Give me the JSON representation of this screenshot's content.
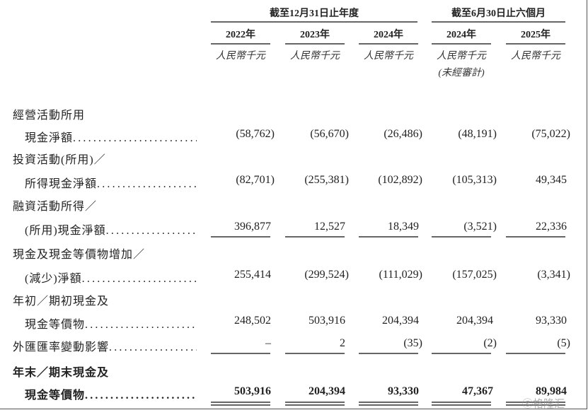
{
  "header": {
    "group_annual": "截至12月31日止年度",
    "group_interim": "截至6月30日止六個月",
    "columns": [
      {
        "year": "2022年",
        "unit": "人民幣千元",
        "note": ""
      },
      {
        "year": "2023年",
        "unit": "人民幣千元",
        "note": ""
      },
      {
        "year": "2024年",
        "unit": "人民幣千元",
        "note": ""
      },
      {
        "year": "2024年",
        "unit": "人民幣千元",
        "note": "(未經審計)"
      },
      {
        "year": "2025年",
        "unit": "人民幣千元",
        "note": ""
      }
    ]
  },
  "rows": [
    {
      "lines": [
        "經營活動所用",
        "現金淨額"
      ],
      "values": [
        "(58,762)",
        "(56,670)",
        "(26,486)",
        "(48,191)",
        "(75,022)"
      ],
      "bold": false,
      "rule": "none"
    },
    {
      "lines": [
        "投資活動(所用)／",
        "所得現金淨額"
      ],
      "values": [
        "(82,701)",
        "(255,381)",
        "(102,892)",
        "(105,313)",
        "49,345"
      ],
      "bold": false,
      "rule": "none"
    },
    {
      "lines": [
        "融資活動所得／",
        "(所用)現金淨額"
      ],
      "values": [
        "396,877",
        "12,527",
        "18,349",
        "(3,521)",
        "22,336"
      ],
      "bold": false,
      "rule": "single"
    },
    {
      "lines": [
        "現金及現金等價物增加／",
        "(減少)淨額"
      ],
      "values": [
        "255,414",
        "(299,524)",
        "(111,029)",
        "(157,025)",
        "(3,341)"
      ],
      "bold": false,
      "rule": "none"
    },
    {
      "lines": [
        "年初／期初現金及",
        "現金等價物"
      ],
      "values": [
        "248,502",
        "503,916",
        "204,394",
        "204,394",
        "93,330"
      ],
      "bold": false,
      "rule": "none"
    },
    {
      "lines": [
        "外匯匯率變動影響"
      ],
      "values": [
        "–",
        "2",
        "(35)",
        "(2)",
        "(5)"
      ],
      "bold": false,
      "rule": "single"
    },
    {
      "lines": [
        "年末／期末現金及",
        "現金等價物"
      ],
      "values": [
        "503,916",
        "204,394",
        "93,330",
        "47,367",
        "89,984"
      ],
      "bold": true,
      "rule": "double"
    }
  ],
  "watermark": "格隆汇"
}
